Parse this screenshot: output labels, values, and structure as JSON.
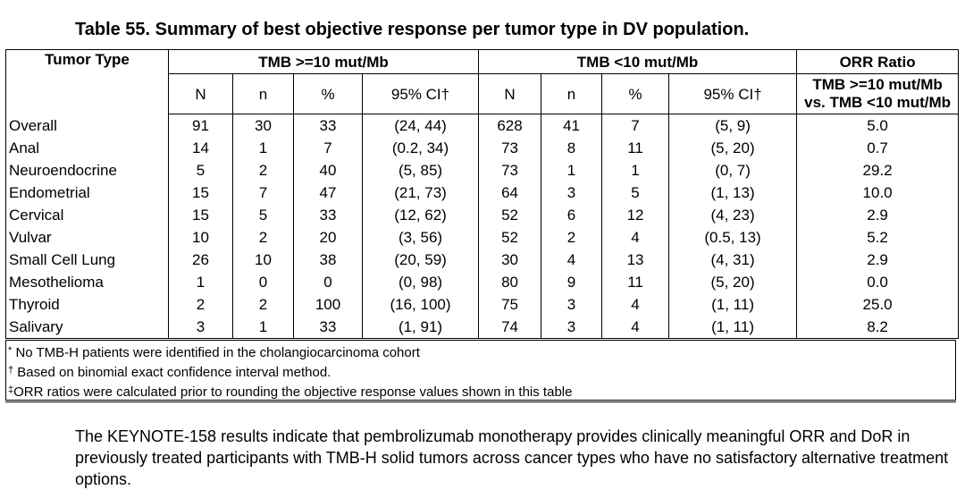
{
  "caption": "Table 55. Summary of best objective response per tumor type in DV population.",
  "header": {
    "tumor_type": "Tumor Type",
    "group_high": "TMB >=10 mut/Mb",
    "group_low": "TMB <10 mut/Mb",
    "orr_ratio": "ORR Ratio",
    "orr_sub1": "TMB >=10 mut/Mb",
    "orr_sub2": "vs. TMB <10 mut/Mb",
    "col_N": "N",
    "col_n": "n",
    "col_pct": "%",
    "col_ci": "95% CI†"
  },
  "rows": [
    {
      "type": "Overall",
      "hN": "91",
      "hn": "30",
      "hp": "33",
      "hci": "(24, 44)",
      "lN": "628",
      "ln": "41",
      "lp": "7",
      "lci": "(5, 9)",
      "ratio": "5.0"
    },
    {
      "type": "Anal",
      "hN": "14",
      "hn": "1",
      "hp": "7",
      "hci": "(0.2, 34)",
      "lN": "73",
      "ln": "8",
      "lp": "11",
      "lci": "(5, 20)",
      "ratio": "0.7"
    },
    {
      "type": "Neuroendocrine",
      "hN": "5",
      "hn": "2",
      "hp": "40",
      "hci": "(5, 85)",
      "lN": "73",
      "ln": "1",
      "lp": "1",
      "lci": "(0, 7)",
      "ratio": "29.2"
    },
    {
      "type": "Endometrial",
      "hN": "15",
      "hn": "7",
      "hp": "47",
      "hci": "(21, 73)",
      "lN": "64",
      "ln": "3",
      "lp": "5",
      "lci": "(1, 13)",
      "ratio": "10.0"
    },
    {
      "type": "Cervical",
      "hN": "15",
      "hn": "5",
      "hp": "33",
      "hci": "(12, 62)",
      "lN": "52",
      "ln": "6",
      "lp": "12",
      "lci": "(4, 23)",
      "ratio": "2.9"
    },
    {
      "type": "Vulvar",
      "hN": "10",
      "hn": "2",
      "hp": "20",
      "hci": "(3, 56)",
      "lN": "52",
      "ln": "2",
      "lp": "4",
      "lci": "(0.5, 13)",
      "ratio": "5.2"
    },
    {
      "type": "Small Cell Lung",
      "hN": "26",
      "hn": "10",
      "hp": "38",
      "hci": "(20, 59)",
      "lN": "30",
      "ln": "4",
      "lp": "13",
      "lci": "(4, 31)",
      "ratio": "2.9"
    },
    {
      "type": "Mesothelioma",
      "hN": "1",
      "hn": "0",
      "hp": "0",
      "hci": "(0, 98)",
      "lN": "80",
      "ln": "9",
      "lp": "11",
      "lci": "(5, 20)",
      "ratio": "0.0"
    },
    {
      "type": "Thyroid",
      "hN": "2",
      "hn": "2",
      "hp": "100",
      "hci": "(16, 100)",
      "lN": "75",
      "ln": "3",
      "lp": "4",
      "lci": "(1, 11)",
      "ratio": "25.0"
    },
    {
      "type": "Salivary",
      "hN": "3",
      "hn": "1",
      "hp": "33",
      "hci": "(1, 91)",
      "lN": "74",
      "ln": "3",
      "lp": "4",
      "lci": "(1, 11)",
      "ratio": "8.2"
    }
  ],
  "footnotes": [
    {
      "mark": "*",
      "text": " No TMB-H patients were identified in the cholangiocarcinoma cohort"
    },
    {
      "mark": "†",
      "text": " Based on binomial exact confidence interval method."
    },
    {
      "mark": "‡",
      "text": "ORR ratios were calculated prior to rounding the objective response values shown in this table"
    }
  ],
  "paragraph": "The KEYNOTE-158 results indicate that pembrolizumab monotherapy provides clinically meaningful ORR and DoR in previously treated participants with TMB-H solid tumors across cancer types who have no satisfactory alternative treatment options."
}
